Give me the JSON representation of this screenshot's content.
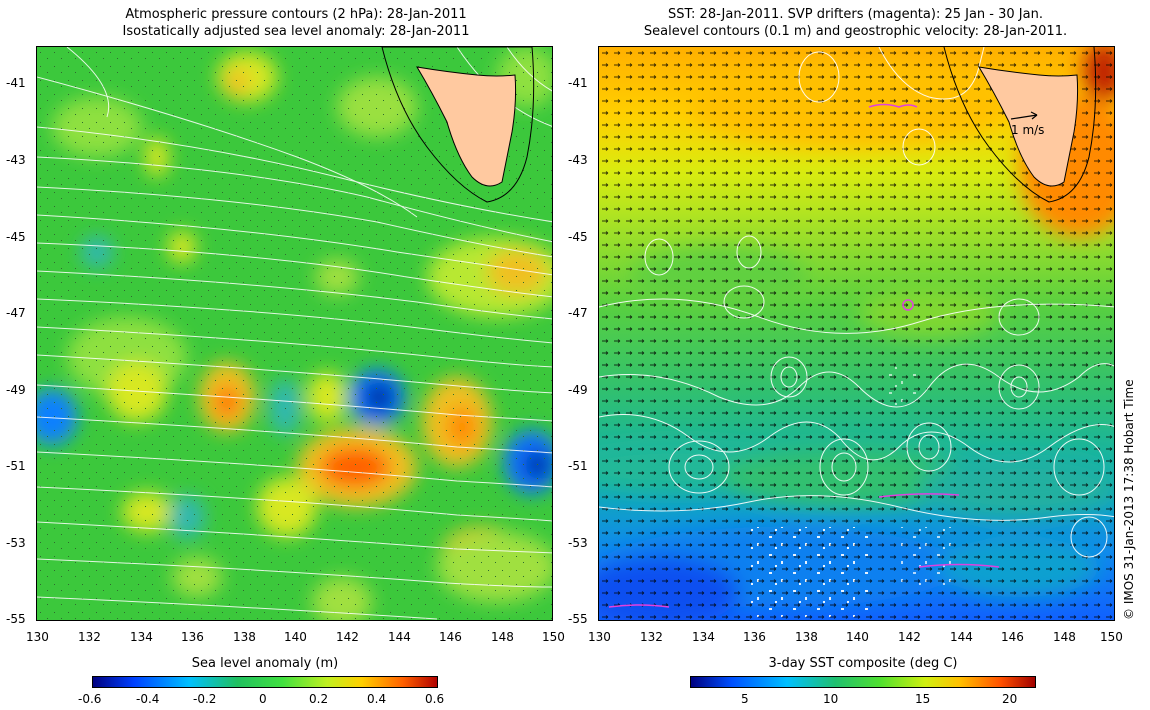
{
  "left_panel": {
    "title_line1": "Atmospheric pressure contours (2 hPa): 28-Jan-2011",
    "title_line2": "Isostatically adjusted sea level anomaly: 28-Jan-2011",
    "colorbar_label": "Sea level anomaly (m)",
    "colorbar_ticks": [
      "-0.6",
      "-0.4",
      "-0.2",
      "0",
      "0.2",
      "0.4",
      "0.6"
    ]
  },
  "right_panel": {
    "title_line1": "SST: 28-Jan-2011. SVP drifters (magenta): 25 Jan - 30 Jan.",
    "title_line2": "Sealevel contours (0.1 m) and geostrophic velocity: 28-Jan-2011.",
    "colorbar_label": "3-day SST composite (deg C)",
    "colorbar_ticks": [
      "5",
      "10",
      "15",
      "20"
    ],
    "velocity_scale_label": "1 m/s"
  },
  "axes": {
    "x_ticks": [
      "130",
      "132",
      "134",
      "136",
      "138",
      "140",
      "142",
      "144",
      "146",
      "148",
      "150"
    ],
    "y_ticks": [
      "-41",
      "-43",
      "-45",
      "-47",
      "-49",
      "-51",
      "-53",
      "-55"
    ]
  },
  "credit": "© IMOS 31-Jan-2013 17:38 Hobart Time",
  "colors": {
    "land": "#ffc9a0",
    "pressure_contour": "#ffffff",
    "sea_contour": "#ffffff",
    "drifter": "#e040e0",
    "anomaly_colormap": [
      "#00007f",
      "#0040ff",
      "#00c0ff",
      "#20c060",
      "#40e040",
      "#c0f020",
      "#ffd000",
      "#ff6000",
      "#b00000"
    ],
    "sst_colormap": [
      "#00007f",
      "#0050ff",
      "#00c0ff",
      "#20c070",
      "#50e030",
      "#d0f010",
      "#ffc000",
      "#ff5000",
      "#a00000"
    ]
  }
}
